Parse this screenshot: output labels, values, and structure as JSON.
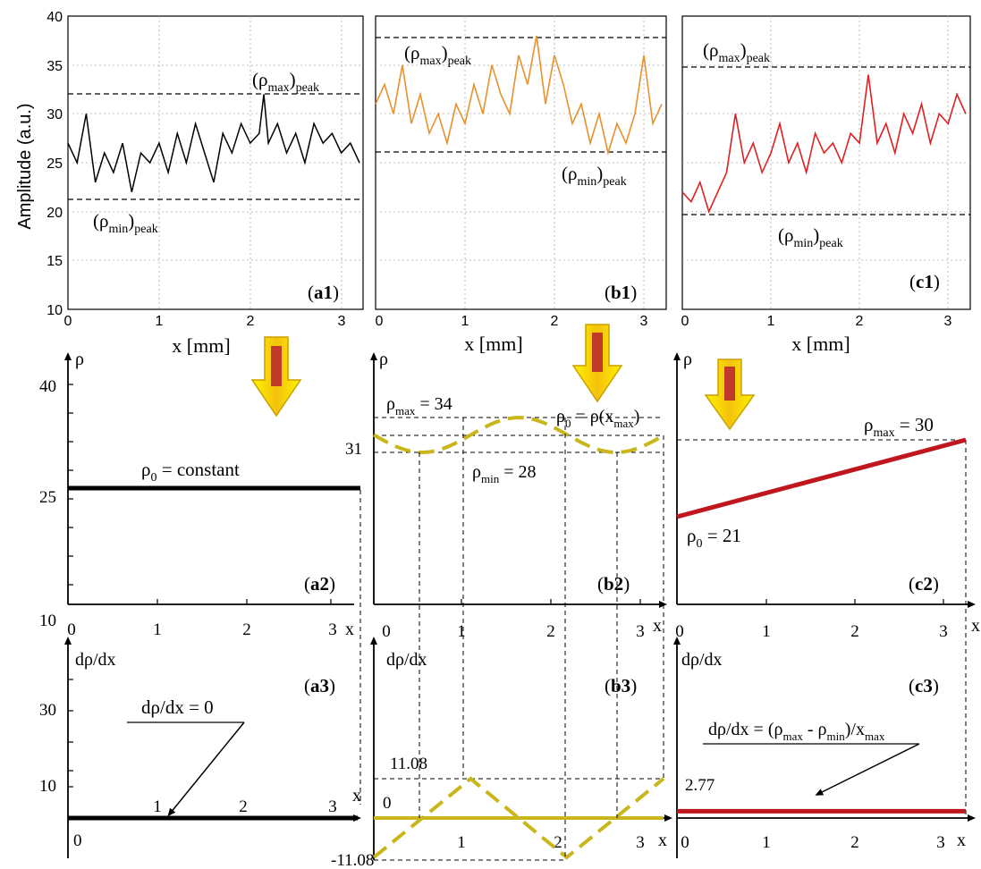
{
  "panels_top": {
    "ylabel": "Amplitude (a.u.)",
    "xlabel": "x [mm]",
    "y_ticks": [
      "10",
      "15",
      "20",
      "25",
      "30",
      "35",
      "40"
    ],
    "x_ticks": [
      "0",
      "1",
      "2",
      "3"
    ]
  },
  "annotations": {
    "a1": {
      "label": "a1",
      "rmax": "(ρmax)peak",
      "rmin": "(ρmin)peak"
    },
    "b1": {
      "label": "b1",
      "rmax": "(ρmax)peak",
      "rmin": "(ρmin)peak"
    },
    "c1": {
      "label": "c1",
      "rmax": "(ρmax)peak",
      "rmin": "(ρmin)peak"
    },
    "a2": {
      "label": "a2",
      "curve": "ρ0 = constant",
      "yaxis": "ρ",
      "y_ticks": [
        "40",
        "25",
        "10"
      ],
      "x_ticks": [
        "0",
        "1",
        "2",
        "3"
      ],
      "xaxis": "x"
    },
    "b2": {
      "label": "b2",
      "yaxis": "ρ",
      "rmax": "ρmax = 34",
      "r0": "ρ0 = ρ(xmax)",
      "rmin": "ρmin = 28",
      "y31": "31",
      "x_ticks": [
        "0",
        "1",
        "2",
        "3"
      ],
      "xaxis": "x"
    },
    "c2": {
      "label": "c2",
      "yaxis": "ρ",
      "rmax": "ρmax = 30",
      "r0": "ρ0 = 21",
      "x_ticks": [
        "0",
        "1",
        "2",
        "3"
      ],
      "xaxis": "x"
    },
    "a3": {
      "label": "a3",
      "yaxis": "dρ/dx",
      "note": "dρ/dx = 0",
      "y_ticks": [
        "30",
        "10",
        "0"
      ],
      "x_ticks": [
        "1",
        "2",
        "3"
      ],
      "xaxis": "x"
    },
    "b3": {
      "label": "b3",
      "yaxis": "dρ/dx",
      "pos": "11.08",
      "neg": "-11.08",
      "zero": "0",
      "x_ticks": [
        "1",
        "2",
        "3"
      ],
      "xaxis": "x"
    },
    "c3": {
      "label": "c3",
      "yaxis": "dρ/dx",
      "note": "dρ/dx = (ρmax - ρmin)/xmax",
      "value": "2.77",
      "x_ticks": [
        "0",
        "1",
        "2",
        "3"
      ],
      "xaxis": "x"
    }
  },
  "chart_data": [
    {
      "type": "line",
      "panel": "a1",
      "xlabel": "x [mm]",
      "ylabel": "Amplitude (a.u.)",
      "xlim": [
        0,
        3.2
      ],
      "ylim": [
        10,
        40
      ],
      "color": "#000000",
      "rho_max_peak": 32,
      "rho_min_peak": 21,
      "x": [
        0.0,
        0.1,
        0.2,
        0.3,
        0.4,
        0.5,
        0.6,
        0.7,
        0.8,
        0.9,
        1.0,
        1.1,
        1.2,
        1.3,
        1.4,
        1.5,
        1.6,
        1.7,
        1.8,
        1.9,
        2.0,
        2.1,
        2.15,
        2.2,
        2.3,
        2.4,
        2.5,
        2.6,
        2.7,
        2.8,
        2.9,
        3.0,
        3.1,
        3.2
      ],
      "y": [
        27,
        25,
        30,
        23,
        26,
        24,
        27,
        22,
        26,
        25,
        27,
        24,
        28,
        25,
        29,
        26,
        23,
        28,
        26,
        29,
        27,
        28,
        32,
        27,
        29,
        26,
        28,
        25,
        29,
        27,
        28,
        26,
        27,
        25
      ]
    },
    {
      "type": "line",
      "panel": "b1",
      "xlabel": "x [mm]",
      "xlim": [
        0,
        3.2
      ],
      "ylim": [
        10,
        40
      ],
      "color": "#e8912d",
      "rho_max_peak": 38,
      "rho_min_peak": 26,
      "x": [
        0.0,
        0.1,
        0.2,
        0.3,
        0.4,
        0.5,
        0.6,
        0.7,
        0.8,
        0.9,
        1.0,
        1.1,
        1.2,
        1.3,
        1.4,
        1.5,
        1.6,
        1.7,
        1.8,
        1.9,
        2.0,
        2.1,
        2.2,
        2.3,
        2.4,
        2.5,
        2.6,
        2.7,
        2.8,
        2.9,
        3.0,
        3.1,
        3.2
      ],
      "y": [
        31,
        33,
        30,
        35,
        29,
        32,
        28,
        30,
        27,
        31,
        29,
        33,
        30,
        35,
        32,
        30,
        36,
        33,
        38,
        31,
        36,
        33,
        29,
        31,
        27,
        30,
        26,
        29,
        27,
        30,
        36,
        29,
        31
      ]
    },
    {
      "type": "line",
      "panel": "c1",
      "xlabel": "x [mm]",
      "xlim": [
        0,
        3.2
      ],
      "ylim": [
        10,
        40
      ],
      "color": "#e02020",
      "rho_max_peak": 35,
      "rho_min_peak": 19.5,
      "x": [
        0.0,
        0.1,
        0.2,
        0.3,
        0.4,
        0.5,
        0.6,
        0.7,
        0.8,
        0.9,
        1.0,
        1.1,
        1.2,
        1.3,
        1.4,
        1.5,
        1.6,
        1.7,
        1.8,
        1.9,
        2.0,
        2.1,
        2.2,
        2.3,
        2.4,
        2.5,
        2.6,
        2.7,
        2.8,
        2.9,
        3.0,
        3.1,
        3.2
      ],
      "y": [
        22,
        21,
        23,
        20,
        22,
        24,
        30,
        25,
        27,
        24,
        26,
        29,
        25,
        27,
        24,
        28,
        26,
        27,
        25,
        28,
        27,
        34,
        27,
        29,
        26,
        30,
        28,
        31,
        27,
        30,
        29,
        32,
        30
      ]
    },
    {
      "type": "line",
      "panel": "a2",
      "x": [
        0,
        3.2
      ],
      "y": [
        25,
        25
      ],
      "ylim": [
        10,
        40
      ]
    },
    {
      "type": "line",
      "panel": "b2",
      "x": [
        0,
        0.53,
        1.07,
        1.6,
        2.13,
        2.67,
        3.2
      ],
      "y": [
        31,
        28,
        31,
        34,
        31,
        28,
        31
      ],
      "ymax": 34,
      "ymin": 28
    },
    {
      "type": "line",
      "panel": "c2",
      "x": [
        0,
        3.2
      ],
      "y": [
        21,
        30
      ]
    },
    {
      "type": "line",
      "panel": "a3",
      "x": [
        0,
        3.2
      ],
      "y": [
        0,
        0
      ]
    },
    {
      "type": "line",
      "panel": "b3",
      "x": [
        0,
        1.07,
        2.13,
        3.2
      ],
      "y": [
        -11.08,
        11.08,
        -11.08,
        11.08
      ]
    },
    {
      "type": "line",
      "panel": "c3",
      "x": [
        0,
        3.2
      ],
      "y": [
        2.77,
        2.77
      ]
    }
  ]
}
